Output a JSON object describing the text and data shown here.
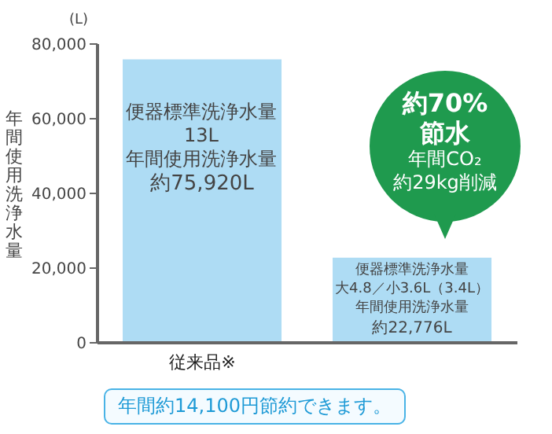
{
  "chart_data": {
    "type": "bar",
    "ylabel": "年間使用洗浄水量",
    "categories": [
      "従来品※",
      null
    ],
    "values": [
      75920,
      22776
    ],
    "colors": [
      "#aedcf4",
      "#aedcf4"
    ],
    "value_labels": [
      "約75,920L",
      "約22,776L"
    ],
    "ylim": [
      0,
      80000
    ],
    "yticks": [
      0,
      {
        "value": 20000,
        "label": "20,000"
      },
      {
        "value": 40000,
        "label": "40,000"
      },
      {
        "value": 60000,
        "label": "60,000"
      },
      {
        "value": 80000,
        "label": "80,000"
      }
    ],
    "grid": false,
    "legend": false,
    "annotations": [
      "(L)",
      "便器標準洗浄水量",
      "13L",
      "年間使用洗浄水量",
      "便器標準洗浄水量",
      "大4.8／小3.6L（3.4L）",
      "年間使用洗浄水量",
      "約70%",
      "節水",
      "年間CO₂",
      "約29kg削減",
      "年間約14,100円節約できます。"
    ]
  }
}
